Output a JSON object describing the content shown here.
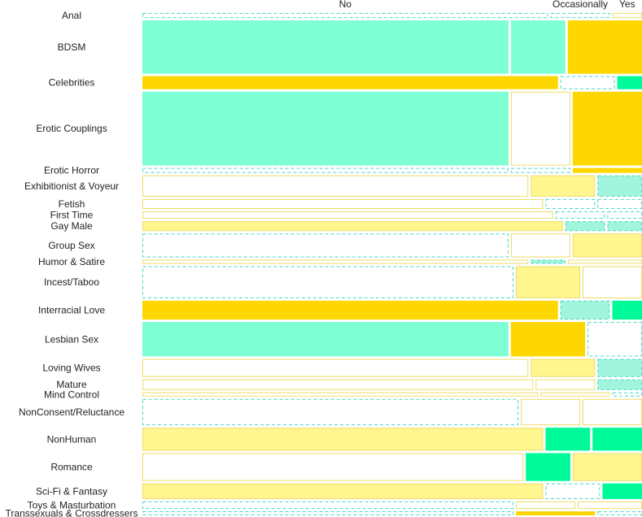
{
  "chart_data": {
    "type": "mosaic",
    "columns": [
      "No",
      "Occasionally",
      "Yes"
    ],
    "rows": [
      {
        "label": "Anal",
        "weight": 0.6,
        "shares": [
          0.82,
          0.12,
          0.06
        ],
        "styles": [
          "dash",
          "dash",
          "outline"
        ]
      },
      {
        "label": "BDSM",
        "weight": 6.5,
        "shares": [
          0.74,
          0.11,
          0.15
        ],
        "styles": [
          "mint",
          "mint",
          "gold"
        ]
      },
      {
        "label": "Celebrities",
        "weight": 1.6,
        "shares": [
          0.84,
          0.11,
          0.05
        ],
        "styles": [
          "gold",
          "dash",
          "teal"
        ]
      },
      {
        "label": "Erotic Couplings",
        "weight": 9.0,
        "shares": [
          0.74,
          0.12,
          0.14
        ],
        "styles": [
          "mint",
          "outline",
          "gold"
        ]
      },
      {
        "label": "Erotic Horror",
        "weight": 0.6,
        "shares": [
          0.74,
          0.12,
          0.14
        ],
        "styles": [
          "dash",
          "dash",
          "gold"
        ]
      },
      {
        "label": "Exhibitionist & Voyeur",
        "weight": 2.6,
        "shares": [
          0.78,
          0.13,
          0.09
        ],
        "styles": [
          "outline",
          "pale",
          "lightmint"
        ]
      },
      {
        "label": "Fetish",
        "weight": 1.2,
        "shares": [
          0.81,
          0.1,
          0.09
        ],
        "styles": [
          "outline",
          "dash",
          "dash"
        ]
      },
      {
        "label": "First Time",
        "weight": 0.9,
        "shares": [
          0.83,
          0.1,
          0.07
        ],
        "styles": [
          "outline",
          "dash",
          "dash"
        ]
      },
      {
        "label": "Gay Male",
        "weight": 1.2,
        "shares": [
          0.85,
          0.08,
          0.07
        ],
        "styles": [
          "pale",
          "lightmint",
          "lightmint"
        ]
      },
      {
        "label": "Group Sex",
        "weight": 2.9,
        "shares": [
          0.74,
          0.12,
          0.14
        ],
        "styles": [
          "dash",
          "outline",
          "pale"
        ]
      },
      {
        "label": "Humor & Satire",
        "weight": 0.5,
        "shares": [
          0.78,
          0.07,
          0.15
        ],
        "styles": [
          "outline",
          "lightmint",
          "outline"
        ]
      },
      {
        "label": "Incest/Taboo",
        "weight": 3.9,
        "shares": [
          0.75,
          0.13,
          0.12
        ],
        "styles": [
          "dash",
          "pale",
          "outline"
        ]
      },
      {
        "label": "Interracial Love",
        "weight": 2.3,
        "shares": [
          0.84,
          0.1,
          0.06
        ],
        "styles": [
          "gold",
          "lightmint",
          "teal"
        ]
      },
      {
        "label": "Lesbian Sex",
        "weight": 4.2,
        "shares": [
          0.74,
          0.15,
          0.11
        ],
        "styles": [
          "mint",
          "gold",
          "dash"
        ]
      },
      {
        "label": "Loving Wives",
        "weight": 2.2,
        "shares": [
          0.78,
          0.13,
          0.09
        ],
        "styles": [
          "outline",
          "pale",
          "lightmint"
        ]
      },
      {
        "label": "Mature",
        "weight": 1.3,
        "shares": [
          0.79,
          0.12,
          0.09
        ],
        "styles": [
          "outline",
          "outline",
          "lightmint"
        ]
      },
      {
        "label": "Mind Control",
        "weight": 0.5,
        "shares": [
          0.8,
          0.14,
          0.06
        ],
        "styles": [
          "outline",
          "outline",
          "dash"
        ]
      },
      {
        "label": "NonConsent/Reluctance",
        "weight": 3.2,
        "shares": [
          0.76,
          0.12,
          0.12
        ],
        "styles": [
          "dash",
          "outline",
          "outline"
        ]
      },
      {
        "label": "NonHuman",
        "weight": 2.8,
        "shares": [
          0.81,
          0.09,
          0.1
        ],
        "styles": [
          "pale",
          "teal",
          "teal"
        ]
      },
      {
        "label": "Romance",
        "weight": 3.4,
        "shares": [
          0.77,
          0.09,
          0.14
        ],
        "styles": [
          "outline",
          "teal",
          "pale"
        ]
      },
      {
        "label": "Sci-Fi & Fantasy",
        "weight": 1.9,
        "shares": [
          0.81,
          0.11,
          0.08
        ],
        "styles": [
          "pale",
          "dash",
          "teal"
        ]
      },
      {
        "label": "Toys & Masturbation",
        "weight": 0.9,
        "shares": [
          0.75,
          0.12,
          0.13
        ],
        "styles": [
          "dash",
          "outline",
          "outline"
        ]
      },
      {
        "label": "Transsexuals & Crossdressers",
        "weight": 0.5,
        "shares": [
          0.75,
          0.16,
          0.09
        ],
        "styles": [
          "dash",
          "gold",
          "dash"
        ]
      }
    ],
    "palette": {
      "mint": "#7fffd4",
      "teal": "#00fa9a",
      "gold": "#ffd700",
      "pale": "#fff68f",
      "lightmint": "#a0f5dc",
      "outline_stroke": "#eedd66",
      "dash_stroke": "#44d9c8"
    },
    "legend": "none",
    "grid": false
  }
}
